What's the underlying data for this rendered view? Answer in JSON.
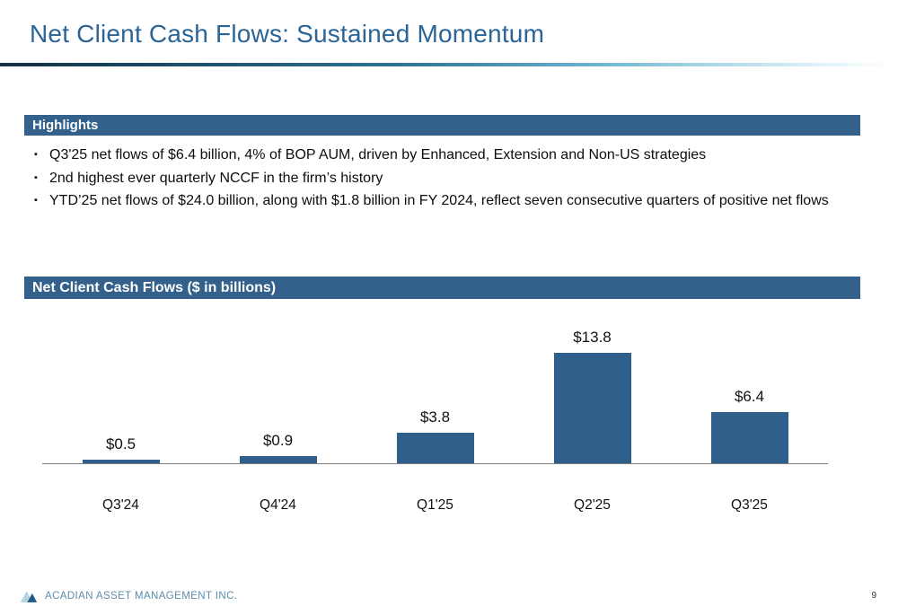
{
  "slide": {
    "title": "Net Client Cash Flows: Sustained Momentum",
    "footer_brand": "ACADIAN ASSET MANAGEMENT INC.",
    "page_number": "9"
  },
  "highlights": {
    "header": "Highlights",
    "bullet_marker": "▪",
    "bullets": [
      "Q3'25 net flows of $6.4 billion, 4% of BOP AUM, driven by Enhanced, Extension and Non-US strategies",
      "2nd highest ever quarterly NCCF in the firm’s history",
      "YTD’25 net flows of $24.0 billion, along with $1.8 billion in FY 2024, reflect seven consecutive quarters of positive net flows"
    ]
  },
  "chart_section": {
    "header": "Net Client Cash Flows ($ in billions)"
  },
  "chart_data": {
    "type": "bar",
    "title": "Net Client Cash Flows ($ in billions)",
    "categories": [
      "Q3'24",
      "Q4'24",
      "Q1'25",
      "Q2'25",
      "Q3'25"
    ],
    "values": [
      0.5,
      0.9,
      3.8,
      13.8,
      6.4
    ],
    "labels": [
      "$0.5",
      "$0.9",
      "$3.8",
      "$13.8",
      "$6.4"
    ],
    "xlabel": "",
    "ylabel": "",
    "ylim": [
      0,
      14
    ],
    "grid": false,
    "legend": false,
    "bar_color": "#2F608C"
  },
  "colors": {
    "title_blue": "#2B6497",
    "header_bar_blue": "#34618C",
    "bar_fill_blue": "#2F608C",
    "footer_blue": "#5D8CAE",
    "axis_gray": "#7F7F7F"
  }
}
